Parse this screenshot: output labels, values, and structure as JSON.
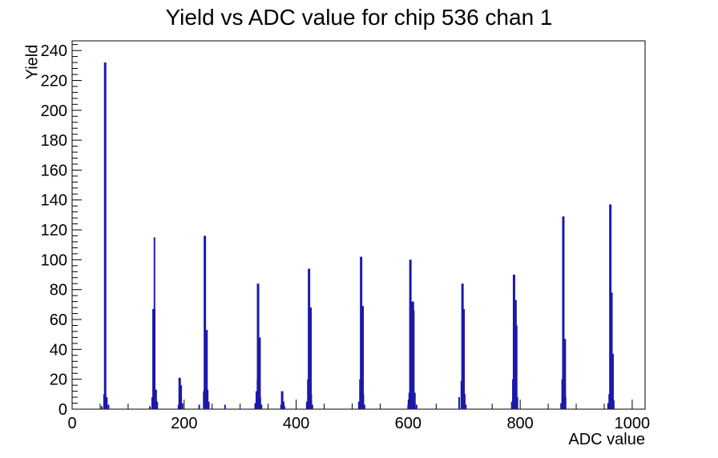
{
  "page": {
    "background": "#ffffff"
  },
  "chart_data": {
    "type": "bar",
    "subtype": "root-histogram",
    "title": "Yield vs ADC value for chip 536 chan 1",
    "xlabel": "ADC value",
    "ylabel": "Yield",
    "xlim": [
      0,
      1023
    ],
    "ylim": [
      0,
      246.5
    ],
    "x_major_ticks": [
      0,
      200,
      400,
      600,
      800,
      1000
    ],
    "x_minor_step": 50,
    "y_major_ticks": [
      0,
      20,
      40,
      60,
      80,
      100,
      120,
      140,
      160,
      180,
      200,
      220,
      240
    ],
    "y_minor_step": 4,
    "grid": false,
    "legend": false,
    "line_color": "#1c19a8",
    "frame_color": "#000000",
    "main_peaks": [
      {
        "adc": 60,
        "yield": 232
      },
      {
        "adc": 147,
        "yield": 115
      },
      {
        "adc": 192,
        "yield": 21
      },
      {
        "adc": 237,
        "yield": 116
      },
      {
        "adc": 332,
        "yield": 84
      },
      {
        "adc": 375,
        "yield": 12
      },
      {
        "adc": 423,
        "yield": 94
      },
      {
        "adc": 516,
        "yield": 102
      },
      {
        "adc": 604,
        "yield": 100
      },
      {
        "adc": 697,
        "yield": 84
      },
      {
        "adc": 789,
        "yield": 90
      },
      {
        "adc": 877,
        "yield": 129
      },
      {
        "adc": 961,
        "yield": 137
      }
    ],
    "spikes": [
      [
        53,
        2,
        2
      ],
      [
        57,
        10,
        2
      ],
      [
        59,
        232,
        3
      ],
      [
        62,
        8,
        2
      ],
      [
        65,
        3,
        2
      ],
      [
        139,
        2,
        2
      ],
      [
        143,
        8,
        2
      ],
      [
        146,
        67,
        4
      ],
      [
        147,
        115,
        2
      ],
      [
        150,
        13,
        2
      ],
      [
        152,
        5,
        2
      ],
      [
        190,
        3,
        2
      ],
      [
        192,
        21,
        3
      ],
      [
        194,
        16,
        3
      ],
      [
        197,
        4,
        2
      ],
      [
        227,
        3,
        2
      ],
      [
        235,
        12,
        2
      ],
      [
        237,
        116,
        3
      ],
      [
        240,
        53,
        3
      ],
      [
        242,
        13,
        2
      ],
      [
        244,
        5,
        2
      ],
      [
        273,
        3,
        2
      ],
      [
        327,
        4,
        2
      ],
      [
        329,
        12,
        2
      ],
      [
        331,
        20,
        2
      ],
      [
        332,
        84,
        3
      ],
      [
        334,
        48,
        4
      ],
      [
        336,
        8,
        2
      ],
      [
        338,
        3,
        2
      ],
      [
        373,
        3,
        2
      ],
      [
        375,
        12,
        3
      ],
      [
        377,
        5,
        3
      ],
      [
        379,
        2,
        2
      ],
      [
        419,
        5,
        2
      ],
      [
        421,
        20,
        2
      ],
      [
        423,
        94,
        3
      ],
      [
        425,
        68,
        4
      ],
      [
        427,
        10,
        2
      ],
      [
        429,
        3,
        2
      ],
      [
        512,
        5,
        2
      ],
      [
        514,
        20,
        2
      ],
      [
        516,
        102,
        3
      ],
      [
        518,
        69,
        4
      ],
      [
        520,
        10,
        2
      ],
      [
        522,
        3,
        2
      ],
      [
        600,
        3,
        2
      ],
      [
        602,
        11,
        2
      ],
      [
        604,
        100,
        3
      ],
      [
        607,
        72,
        5
      ],
      [
        610,
        66,
        2
      ],
      [
        612,
        11,
        2
      ],
      [
        615,
        3,
        2
      ],
      [
        691,
        8,
        2
      ],
      [
        695,
        19,
        2
      ],
      [
        697,
        84,
        3
      ],
      [
        699,
        67,
        3
      ],
      [
        701,
        10,
        2
      ],
      [
        703,
        3,
        2
      ],
      [
        785,
        5,
        2
      ],
      [
        787,
        20,
        2
      ],
      [
        789,
        90,
        3
      ],
      [
        791,
        73,
        4
      ],
      [
        793,
        56,
        3
      ],
      [
        795,
        8,
        2
      ],
      [
        873,
        4,
        2
      ],
      [
        875,
        20,
        2
      ],
      [
        877,
        129,
        3
      ],
      [
        879,
        47,
        4
      ],
      [
        881,
        8,
        2
      ],
      [
        957,
        4,
        2
      ],
      [
        959,
        10,
        2
      ],
      [
        961,
        137,
        3
      ],
      [
        963,
        78,
        3
      ],
      [
        965,
        37,
        3
      ],
      [
        967,
        6,
        2
      ]
    ]
  }
}
